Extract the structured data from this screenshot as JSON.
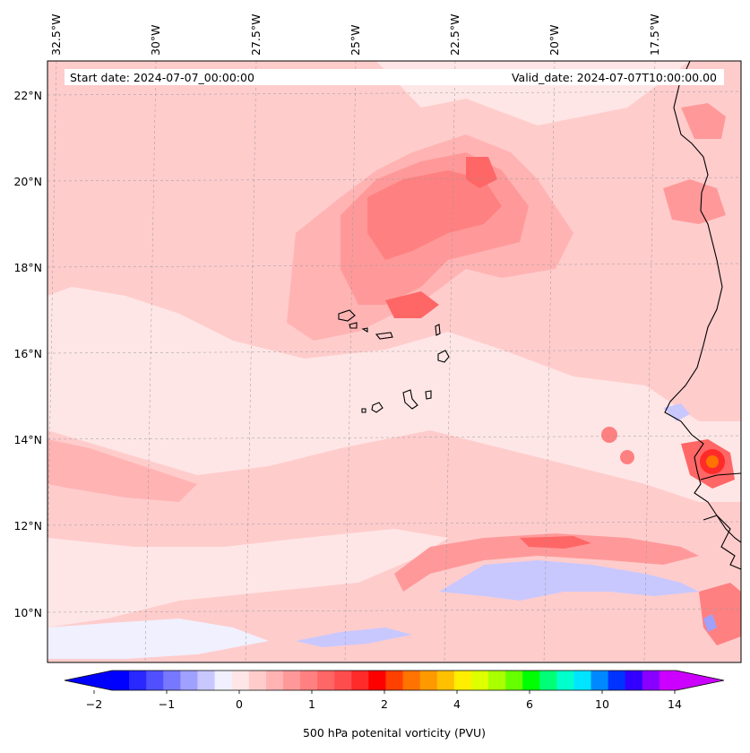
{
  "map": {
    "start_date": "Start date: 2024-07-07_00:00:00",
    "valid_date": "Valid_date: 2024-07-07T10:00:00.00",
    "longitude_labels": [
      "32.5°W",
      "30°W",
      "27.5°W",
      "25°W",
      "22.5°W",
      "20°W",
      "17.5°W"
    ],
    "latitude_labels": [
      "22°N",
      "20°N",
      "18°N",
      "16°N",
      "14°N",
      "12°N",
      "10°N"
    ],
    "lon_range": [
      -32.6,
      -15.4
    ],
    "lat_range": [
      8.9,
      22.8
    ],
    "gridlines": true
  },
  "colorbar": {
    "label": "500 hPa potenital vorticity (PVU)",
    "tick_labels": [
      "−2",
      "−1",
      "0",
      "1",
      "2",
      "4",
      "6",
      "10",
      "14"
    ],
    "colors": [
      "#0000ff",
      "#2828ff",
      "#5050ff",
      "#7878ff",
      "#a0a0ff",
      "#c8c8ff",
      "#f0f0ff",
      "#ffe6e6",
      "#ffcccc",
      "#ffb3b3",
      "#ff9999",
      "#ff8080",
      "#ff6666",
      "#ff4d4d",
      "#ff2b2b",
      "#ff0000",
      "#ff4000",
      "#ff7300",
      "#ff9900",
      "#ffc000",
      "#ffee00",
      "#ddff00",
      "#aaff00",
      "#66ff00",
      "#00ff00",
      "#00ff77",
      "#00ffcc",
      "#00e5ff",
      "#0088ff",
      "#0033ff",
      "#3300ff",
      "#8800ff",
      "#cc00ff"
    ],
    "extend": "both"
  },
  "features": {
    "islands": "Cape Verde",
    "coastline": "West Africa"
  }
}
